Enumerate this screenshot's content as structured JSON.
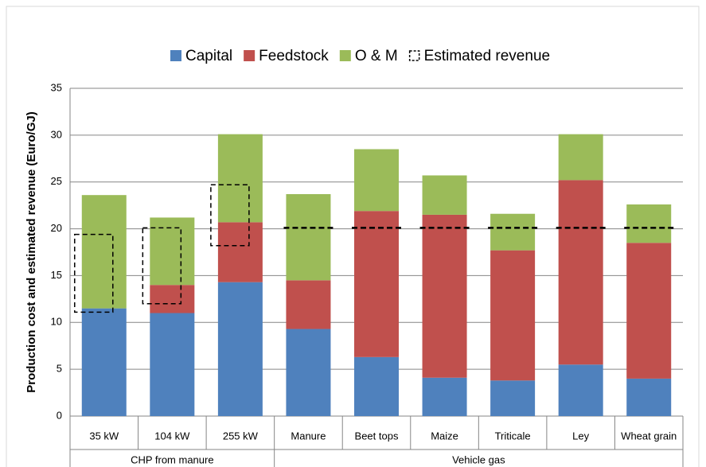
{
  "chart_data": {
    "type": "stacked_bar",
    "y_label": "Production cost and estimated revenue (Euro/GJ)",
    "categories": [
      "35 kW",
      "104 kW",
      "255 kW",
      "Manure",
      "Beet tops",
      "Maize",
      "Triticale",
      "Ley",
      "Wheat grain"
    ],
    "category_groups": [
      "CHP from manure",
      "CHP from manure",
      "CHP from manure",
      "Vehicle gas",
      "Vehicle gas",
      "Vehicle gas",
      "Vehicle gas",
      "Vehicle gas",
      "Vehicle gas"
    ],
    "series": [
      {
        "name": "Capital",
        "color": "#4f81bd",
        "values": [
          11.5,
          11.0,
          14.3,
          9.3,
          6.3,
          4.1,
          3.8,
          5.5,
          4.0
        ]
      },
      {
        "name": "Feedstock",
        "color": "#c0504d",
        "values": [
          0,
          3.0,
          6.4,
          5.2,
          15.6,
          17.4,
          13.9,
          19.7,
          14.5
        ]
      },
      {
        "name": "O & M",
        "color": "#9bbb59",
        "values": [
          12.1,
          7.2,
          9.4,
          9.2,
          6.6,
          4.2,
          3.9,
          4.9,
          4.1
        ]
      }
    ],
    "revenue": {
      "name": "Estimated revenue",
      "color": "#000000",
      "low": [
        11.1,
        12.0,
        18.2,
        20.1,
        20.1,
        20.1,
        20.1,
        20.1,
        20.1
      ],
      "high": [
        19.4,
        20.1,
        24.7,
        20.1,
        20.1,
        20.1,
        20.1,
        20.1,
        20.1
      ]
    },
    "ylim": [
      0,
      35
    ],
    "yticks": [
      0,
      5,
      10,
      15,
      20,
      25,
      30,
      35
    ],
    "grid": true,
    "legend": "top"
  }
}
